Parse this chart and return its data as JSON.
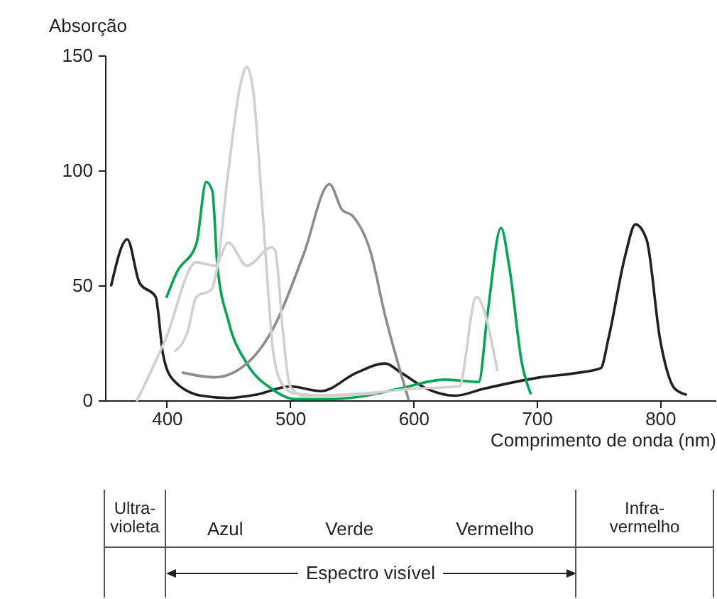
{
  "chart_data": {
    "type": "line",
    "xlabel": "Comprimento de onda (nm)",
    "ylabel": "Absorção",
    "xlim": [
      350,
      845
    ],
    "ylim": [
      0,
      150
    ],
    "xticks": [
      400,
      500,
      600,
      700,
      800
    ],
    "yticks": [
      0,
      50,
      100,
      150
    ],
    "grid": false,
    "legend": false,
    "marker": "none",
    "line_style": "solid",
    "series": [
      {
        "color": "#231f20",
        "x": [
          355,
          368,
          378,
          391,
          397,
          405,
          428,
          450,
          473,
          500,
          525,
          554,
          577,
          590,
          611,
          634,
          657,
          703,
          734,
          752,
          758,
          772,
          780,
          789,
          800,
          812,
          821
        ],
        "values": [
          50,
          70,
          51,
          45,
          20,
          9,
          2,
          1,
          2.5,
          6,
          4,
          12,
          16,
          12,
          5,
          2,
          5,
          10,
          12,
          14,
          26.5,
          63.5,
          76.5,
          70,
          26.5,
          5,
          2.5
        ]
      },
      {
        "color": "#00a650",
        "x": [
          400,
          408,
          424,
          432,
          437,
          441,
          450,
          465,
          485,
          504,
          530,
          562,
          588,
          626,
          653,
          660,
          671,
          678,
          688,
          695
        ],
        "values": [
          45,
          55.5,
          68,
          95,
          91,
          59,
          34.5,
          16,
          5,
          0.5,
          0.5,
          2,
          5,
          9,
          8,
          37,
          75,
          57,
          16,
          3
        ]
      },
      {
        "color": "#8c8c8c",
        "x": [
          413,
          439,
          465,
          488,
          511,
          532,
          542,
          551,
          565,
          577,
          596
        ],
        "values": [
          12,
          10,
          16,
          33,
          63.5,
          94,
          83,
          80,
          65,
          37,
          0.5
        ]
      },
      {
        "color": "#d0d0d0",
        "x": [
          376,
          399,
          424,
          439,
          450,
          465,
          485,
          488,
          494,
          500,
          511,
          560,
          600,
          637,
          651,
          668
        ],
        "values": [
          0,
          26.5,
          60,
          58.5,
          68.5,
          58.5,
          66.5,
          65,
          31,
          6,
          2,
          3,
          5,
          6,
          45,
          13
        ]
      },
      {
        "color": "#d0d0d0",
        "x": [
          407,
          417,
          424,
          436,
          440,
          450,
          460,
          465,
          470,
          478,
          487,
          495,
          504,
          530,
          570
        ],
        "values": [
          21.5,
          30,
          45,
          48,
          55,
          100,
          138,
          145,
          135,
          80,
          18.5,
          6,
          3,
          2,
          3
        ]
      }
    ],
    "annotations": [
      "Ultra-violeta",
      "Azul",
      "Verde",
      "Vermelho",
      "Infra-vermelho",
      "Espectro visível"
    ]
  }
}
